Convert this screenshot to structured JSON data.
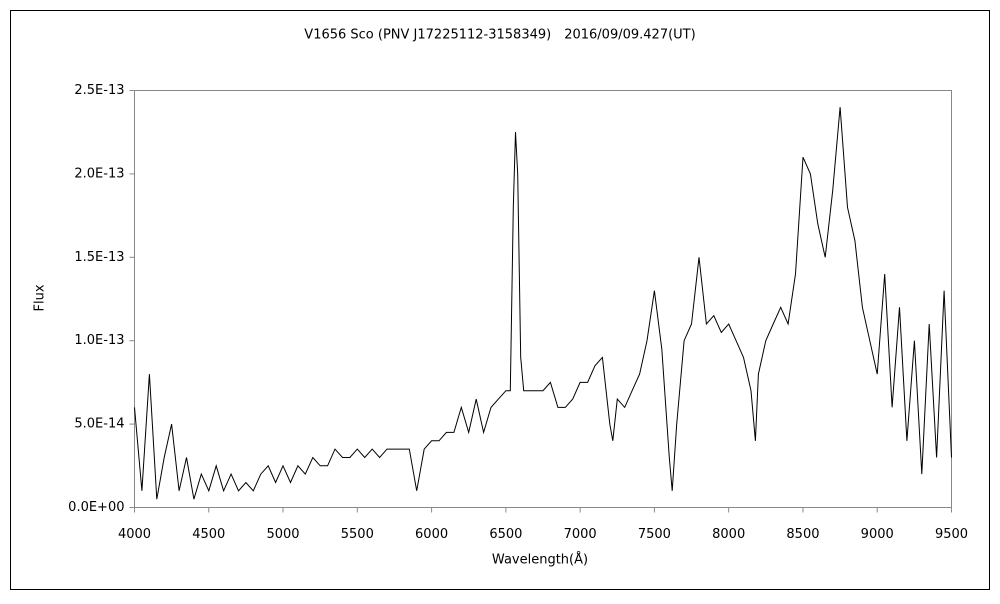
{
  "chart_data": {
    "type": "line",
    "title": "V1656 Sco (PNV J17225112-3158349)　2016/09/09.427(UT)",
    "x_label": "Wavelength(Å)",
    "y_label": "Flux",
    "xlim": [
      4000,
      9500
    ],
    "xticks": [
      4000,
      4500,
      5000,
      5500,
      6000,
      6500,
      7000,
      7500,
      8000,
      8500,
      9000,
      9500
    ],
    "ylim": [
      0,
      2.5e-13
    ],
    "yticks": [
      {
        "value": 0,
        "label": "0.0E+00"
      },
      {
        "value": 5e-14,
        "label": "5.0E-14"
      },
      {
        "value": 1e-13,
        "label": "1.0E-13"
      },
      {
        "value": 1.5e-13,
        "label": "1.5E-13"
      },
      {
        "value": 2e-13,
        "label": "2.0E-13"
      },
      {
        "value": 2.5e-13,
        "label": "2.5E-13"
      }
    ],
    "grid": false,
    "x": [
      4000,
      4050,
      4100,
      4150,
      4200,
      4250,
      4300,
      4350,
      4400,
      4450,
      4500,
      4550,
      4600,
      4650,
      4700,
      4750,
      4800,
      4850,
      4900,
      4950,
      5000,
      5050,
      5100,
      5150,
      5200,
      5250,
      5300,
      5350,
      5400,
      5450,
      5500,
      5550,
      5600,
      5650,
      5700,
      5750,
      5800,
      5850,
      5900,
      5950,
      6000,
      6050,
      6100,
      6150,
      6200,
      6250,
      6300,
      6350,
      6400,
      6450,
      6500,
      6530,
      6550,
      6565,
      6580,
      6600,
      6620,
      6650,
      6700,
      6750,
      6800,
      6850,
      6900,
      6950,
      7000,
      7050,
      7100,
      7150,
      7200,
      7220,
      7250,
      7300,
      7350,
      7400,
      7450,
      7500,
      7550,
      7600,
      7620,
      7650,
      7700,
      7750,
      7800,
      7850,
      7900,
      7950,
      8000,
      8050,
      8100,
      8150,
      8180,
      8200,
      8250,
      8300,
      8350,
      8400,
      8450,
      8500,
      8550,
      8600,
      8650,
      8700,
      8750,
      8800,
      8850,
      8900,
      8950,
      9000,
      9050,
      9100,
      9150,
      9200,
      9250,
      9300,
      9350,
      9400,
      9450,
      9500
    ],
    "series": [
      {
        "name": "Flux",
        "color": "#000000",
        "values": [
          6e-14,
          1e-14,
          8e-14,
          5e-15,
          3e-14,
          5e-14,
          1e-14,
          3e-14,
          5e-15,
          2e-14,
          1e-14,
          2.5e-14,
          1e-14,
          2e-14,
          1e-14,
          1.5e-14,
          1e-14,
          2e-14,
          2.5e-14,
          1.5e-14,
          2.5e-14,
          1.5e-14,
          2.5e-14,
          2e-14,
          3e-14,
          2.5e-14,
          2.5e-14,
          3.5e-14,
          3e-14,
          3e-14,
          3.5e-14,
          3e-14,
          3.5e-14,
          3e-14,
          3.5e-14,
          3.5e-14,
          3.5e-14,
          3.5e-14,
          1e-14,
          3.5e-14,
          4e-14,
          4e-14,
          4.5e-14,
          4.5e-14,
          6e-14,
          4.5e-14,
          6.5e-14,
          4.5e-14,
          6e-14,
          6.5e-14,
          7e-14,
          7e-14,
          1.8e-13,
          2.25e-13,
          2e-13,
          9e-14,
          7e-14,
          7e-14,
          7e-14,
          7e-14,
          7.5e-14,
          6e-14,
          6e-14,
          6.5e-14,
          7.5e-14,
          7.5e-14,
          8.5e-14,
          9e-14,
          5e-14,
          4e-14,
          6.5e-14,
          6e-14,
          7e-14,
          8e-14,
          1e-13,
          1.3e-13,
          9.5e-14,
          3e-14,
          1e-14,
          5e-14,
          1e-13,
          1.1e-13,
          1.5e-13,
          1.1e-13,
          1.15e-13,
          1.05e-13,
          1.1e-13,
          1e-13,
          9e-14,
          7e-14,
          4e-14,
          8e-14,
          1e-13,
          1.1e-13,
          1.2e-13,
          1.1e-13,
          1.4e-13,
          2.1e-13,
          2e-13,
          1.7e-13,
          1.5e-13,
          1.9e-13,
          2.4e-13,
          1.8e-13,
          1.6e-13,
          1.2e-13,
          1e-13,
          8e-14,
          1.4e-13,
          6e-14,
          1.2e-13,
          4e-14,
          1e-13,
          2e-14,
          1.1e-13,
          3e-14,
          1.3e-13,
          3e-14
        ]
      }
    ]
  }
}
